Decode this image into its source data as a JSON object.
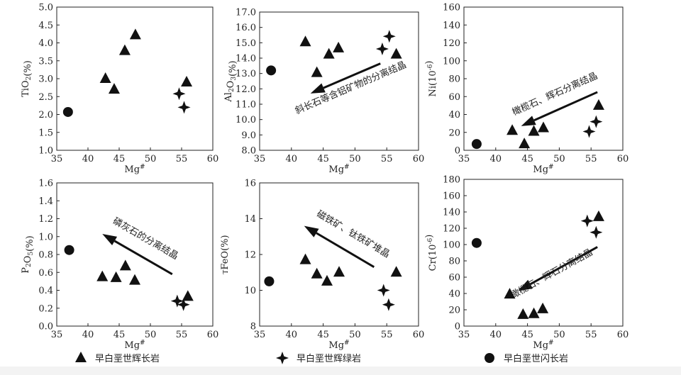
{
  "legend": [
    {
      "marker": "triangle",
      "label": "早白垩世辉长岩"
    },
    {
      "marker": "star",
      "label": "早白垩世辉绿岩"
    },
    {
      "marker": "circle",
      "label": "早白垩世闪长岩"
    }
  ],
  "colors": {
    "ink": "#111111",
    "axis": "#222222",
    "background": "#ffffff"
  },
  "chart_data": [
    {
      "id": "tio2",
      "type": "scatter",
      "ylabel": "TiO2(%)",
      "xlabel": "Mg#",
      "xlim": [
        35,
        60
      ],
      "xticks": [
        35,
        40,
        45,
        50,
        55,
        60
      ],
      "ylim": [
        1.0,
        5.0
      ],
      "yticks": [
        1.0,
        1.5,
        2.0,
        2.5,
        3.0,
        3.5,
        4.0,
        4.5,
        5.0
      ],
      "ydecimals": 1,
      "series": [
        {
          "name": "早白垩世辉长岩",
          "marker": "triangle",
          "points": [
            [
              42.8,
              3.0
            ],
            [
              44.2,
              2.7
            ],
            [
              45.9,
              3.78
            ],
            [
              47.6,
              4.22
            ],
            [
              55.8,
              2.9
            ]
          ]
        },
        {
          "name": "早白垩世辉绿岩",
          "marker": "star",
          "points": [
            [
              54.6,
              2.58
            ],
            [
              55.4,
              2.2
            ]
          ]
        },
        {
          "name": "早白垩世闪长岩",
          "marker": "circle",
          "points": [
            [
              36.8,
              2.07
            ]
          ]
        }
      ],
      "annotation": null
    },
    {
      "id": "al2o3",
      "type": "scatter",
      "ylabel": "Al2O3(%)",
      "xlabel": "Mg#",
      "xlim": [
        35,
        60
      ],
      "xticks": [
        35,
        40,
        45,
        50,
        55,
        60
      ],
      "ylim": [
        8.0,
        17.0
      ],
      "yticks": [
        8.0,
        9.0,
        10.0,
        11.0,
        12.0,
        13.0,
        14.0,
        15.0,
        16.0,
        17.0
      ],
      "ydecimals": 1,
      "series": [
        {
          "name": "早白垩世辉长岩",
          "marker": "triangle",
          "points": [
            [
              42.2,
              15.05
            ],
            [
              44.0,
              13.05
            ],
            [
              45.9,
              14.25
            ],
            [
              47.4,
              14.65
            ],
            [
              56.5,
              14.25
            ]
          ]
        },
        {
          "name": "早白垩世辉绿岩",
          "marker": "star",
          "points": [
            [
              54.3,
              14.6
            ],
            [
              55.4,
              15.42
            ]
          ]
        },
        {
          "name": "早白垩世闪长岩",
          "marker": "circle",
          "points": [
            [
              36.8,
              13.2
            ]
          ]
        }
      ],
      "annotation": {
        "text": "斜长石等含铝矿物的分离结晶",
        "arrow_from": [
          54.0,
          13.65
        ],
        "arrow_to": [
          43.0,
          11.7
        ],
        "text_at": [
          49.5,
          11.9
        ]
      }
    },
    {
      "id": "ni",
      "type": "scatter",
      "ylabel": "Ni(10-6)",
      "xlabel": "Mg#",
      "xlim": [
        35,
        60
      ],
      "xticks": [
        35,
        40,
        45,
        50,
        55,
        60
      ],
      "ylim": [
        0,
        160
      ],
      "yticks": [
        0,
        20,
        40,
        60,
        80,
        100,
        120,
        140,
        160
      ],
      "ydecimals": 0,
      "series": [
        {
          "name": "早白垩世辉长岩",
          "marker": "triangle",
          "points": [
            [
              42.6,
              22
            ],
            [
              44.5,
              7
            ],
            [
              46.0,
              21
            ],
            [
              47.5,
              25
            ],
            [
              56.2,
              50
            ]
          ]
        },
        {
          "name": "早白垩世辉绿岩",
          "marker": "star",
          "points": [
            [
              54.7,
              21
            ],
            [
              55.8,
              32
            ]
          ]
        },
        {
          "name": "早白垩世闪长岩",
          "marker": "circle",
          "points": [
            [
              37.0,
              7
            ]
          ]
        }
      ],
      "annotation": {
        "text": "橄榄石、辉石分离结晶",
        "arrow_from": [
          56.0,
          65
        ],
        "arrow_to": [
          44.0,
          27
        ],
        "text_at": [
          49.5,
          60
        ]
      }
    },
    {
      "id": "p2o5",
      "type": "scatter",
      "ylabel": "P2O5(%)",
      "xlabel": "Mg#",
      "xlim": [
        35,
        60
      ],
      "xticks": [
        35,
        40,
        45,
        50,
        55,
        60
      ],
      "ylim": [
        0,
        1.6
      ],
      "yticks": [
        0,
        0.2,
        0.4,
        0.6,
        0.8,
        1.0,
        1.2,
        1.4,
        1.6
      ],
      "ydecimals": 1,
      "series": [
        {
          "name": "早白垩世辉长岩",
          "marker": "triangle",
          "points": [
            [
              42.3,
              0.55
            ],
            [
              44.5,
              0.54
            ],
            [
              46.0,
              0.67
            ],
            [
              47.5,
              0.51
            ],
            [
              56.0,
              0.33
            ]
          ]
        },
        {
          "name": "早白垩世辉绿岩",
          "marker": "star",
          "points": [
            [
              54.3,
              0.28
            ],
            [
              55.3,
              0.24
            ]
          ]
        },
        {
          "name": "早白垩世闪长岩",
          "marker": "circle",
          "points": [
            [
              37.0,
              0.85
            ]
          ]
        }
      ],
      "annotation": {
        "text": "磷灰石的分离结晶",
        "arrow_from": [
          53.5,
          0.58
        ],
        "arrow_to": [
          42.3,
          1.03
        ],
        "text_at": [
          49.0,
          0.95
        ]
      }
    },
    {
      "id": "tfeo",
      "type": "scatter",
      "ylabel": "TFeO(%)",
      "xlabel": "Mg#",
      "xlim": [
        35,
        60
      ],
      "xticks": [
        35,
        40,
        45,
        50,
        55,
        60
      ],
      "ylim": [
        8,
        16
      ],
      "yticks": [
        8,
        10,
        12,
        14,
        16
      ],
      "ydecimals": 0,
      "series": [
        {
          "name": "早白垩世辉长岩",
          "marker": "triangle",
          "points": [
            [
              42.2,
              11.7
            ],
            [
              44.0,
              10.9
            ],
            [
              45.6,
              10.5
            ],
            [
              47.5,
              11.0
            ],
            [
              56.5,
              11.0
            ]
          ]
        },
        {
          "name": "早白垩世辉绿岩",
          "marker": "star",
          "points": [
            [
              54.5,
              10.0
            ],
            [
              55.3,
              9.2
            ]
          ]
        },
        {
          "name": "早白垩世闪长岩",
          "marker": "circle",
          "points": [
            [
              36.5,
              10.5
            ]
          ]
        }
      ],
      "annotation": {
        "text": "磁铁矿、钛铁矿堆晶",
        "arrow_from": [
          53.0,
          11.3
        ],
        "arrow_to": [
          42.0,
          13.6
        ],
        "text_at": [
          49.5,
          13.0
        ]
      }
    },
    {
      "id": "cr",
      "type": "scatter",
      "ylabel": "Cr(10-6)",
      "xlabel": "Mg#",
      "xlim": [
        35,
        60
      ],
      "xticks": [
        35,
        40,
        45,
        50,
        55,
        60
      ],
      "ylim": [
        0,
        180
      ],
      "yticks": [
        0,
        20,
        40,
        60,
        80,
        100,
        120,
        140,
        160,
        180
      ],
      "ydecimals": 0,
      "series": [
        {
          "name": "早白垩世辉长岩",
          "marker": "triangle",
          "points": [
            [
              42.2,
              39
            ],
            [
              44.3,
              14
            ],
            [
              46.0,
              15
            ],
            [
              47.4,
              21
            ],
            [
              56.2,
              134
            ]
          ]
        },
        {
          "name": "早白垩世辉绿岩",
          "marker": "star",
          "points": [
            [
              54.4,
              129
            ],
            [
              55.8,
              115
            ]
          ]
        },
        {
          "name": "早白垩世闪长岩",
          "marker": "circle",
          "points": [
            [
              37.0,
              102
            ]
          ]
        }
      ],
      "annotation": {
        "text": "橄榄石、辉石分离结晶",
        "arrow_from": [
          56.0,
          97
        ],
        "arrow_to": [
          43.5,
          43
        ],
        "text_at": [
          49.0,
          61
        ]
      }
    }
  ]
}
